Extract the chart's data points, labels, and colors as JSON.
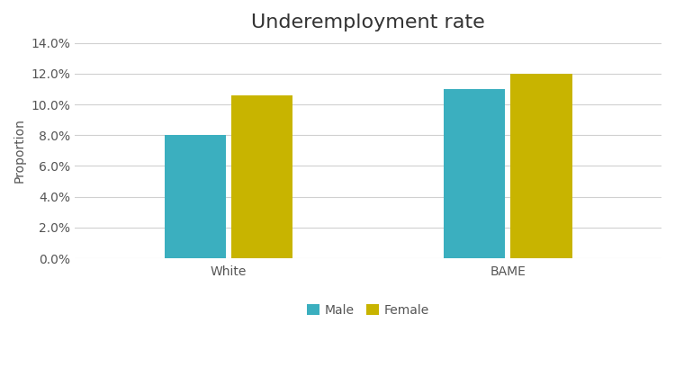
{
  "title": "Underemployment rate",
  "ylabel": "Proportion",
  "categories": [
    "White",
    "BAME"
  ],
  "series": {
    "Male": [
      0.08,
      0.11
    ],
    "Female": [
      0.106,
      0.12
    ]
  },
  "colors": {
    "Male": "#3BAFBF",
    "Female": "#C8B400"
  },
  "ylim": [
    0,
    0.14
  ],
  "yticks": [
    0.0,
    0.02,
    0.04,
    0.06,
    0.08,
    0.1,
    0.12,
    0.14
  ],
  "bar_width": 0.22,
  "legend_labels": [
    "Male",
    "Female"
  ],
  "title_fontsize": 16,
  "axis_label_fontsize": 10,
  "tick_fontsize": 10,
  "legend_fontsize": 10,
  "background_color": "#ffffff",
  "grid_color": "#d0d0d0",
  "figsize": [
    7.5,
    4.09
  ],
  "dpi": 100
}
